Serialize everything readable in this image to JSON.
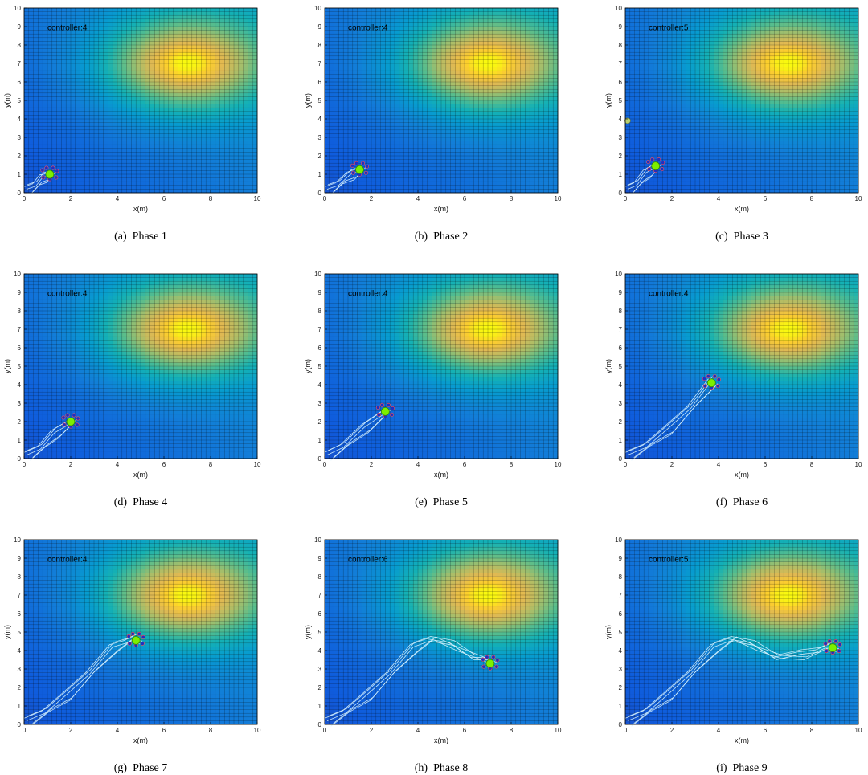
{
  "figure": {
    "panels": [
      {
        "caption": "(a)  Phase 1",
        "controller_label": "controller:4",
        "xlabel": "x(m)",
        "ylabel": "y(m)"
      },
      {
        "caption": "(b)  Phase 2",
        "controller_label": "controller:4",
        "xlabel": "x(m)",
        "ylabel": "y(m)"
      },
      {
        "caption": "(c)  Phase 3",
        "controller_label": "controller:5",
        "xlabel": "x(m)",
        "ylabel": "y(m)"
      },
      {
        "caption": "(d)  Phase 4",
        "controller_label": "controller:4",
        "xlabel": "x(m)",
        "ylabel": "y(m)"
      },
      {
        "caption": "(e)  Phase 5",
        "controller_label": "controller:4",
        "xlabel": "x(m)",
        "ylabel": "y(m)"
      },
      {
        "caption": "(f)  Phase 6",
        "controller_label": "controller:4",
        "xlabel": "x(m)",
        "ylabel": "y(m)"
      },
      {
        "caption": "(g)  Phase 7",
        "controller_label": "controller:4",
        "xlabel": "x(m)",
        "ylabel": "y(m)"
      },
      {
        "caption": "(h)  Phase 8",
        "controller_label": "controller:6",
        "xlabel": "x(m)",
        "ylabel": "y(m)"
      },
      {
        "caption": "(i)  Phase 9",
        "controller_label": "controller:5",
        "xlabel": "x(m)",
        "ylabel": "y(m)"
      }
    ]
  },
  "chart_data": [
    {
      "type": "heatmap",
      "phase": 1,
      "xlim": [
        0,
        10
      ],
      "ylim": [
        0,
        10
      ],
      "xticks": [
        0,
        2,
        4,
        6,
        8,
        10
      ],
      "yticks": [
        0,
        1,
        2,
        3,
        4,
        5,
        6,
        7,
        8,
        9,
        10
      ],
      "grid": true,
      "field_peak": [
        7,
        7
      ],
      "centroid": [
        1.1,
        1.0
      ],
      "path": [
        [
          0.1,
          0.1
        ],
        [
          0.5,
          0.45
        ],
        [
          0.8,
          0.75
        ],
        [
          1.1,
          1.0
        ]
      ]
    },
    {
      "type": "heatmap",
      "phase": 2,
      "xlim": [
        0,
        10
      ],
      "ylim": [
        0,
        10
      ],
      "xticks": [
        0,
        2,
        4,
        6,
        8,
        10
      ],
      "yticks": [
        0,
        1,
        2,
        3,
        4,
        5,
        6,
        7,
        8,
        9,
        10
      ],
      "grid": true,
      "field_peak": [
        7,
        7
      ],
      "centroid": [
        1.5,
        1.25
      ],
      "path": [
        [
          0.1,
          0.1
        ],
        [
          0.6,
          0.5
        ],
        [
          1.1,
          0.9
        ],
        [
          1.5,
          1.25
        ]
      ]
    },
    {
      "type": "heatmap",
      "phase": 3,
      "xlim": [
        0,
        10
      ],
      "ylim": [
        0,
        10
      ],
      "xticks": [
        0,
        2,
        4,
        6,
        8,
        10
      ],
      "yticks": [
        0,
        1,
        2,
        3,
        4,
        5,
        6,
        7,
        8,
        9,
        10
      ],
      "grid": true,
      "field_peak": [
        7,
        7
      ],
      "centroid": [
        1.3,
        1.45
      ],
      "path": [
        [
          0.1,
          0.1
        ],
        [
          0.5,
          0.5
        ],
        [
          0.9,
          1.0
        ],
        [
          1.3,
          1.45
        ]
      ],
      "extra_marker": [
        0.1,
        3.9
      ]
    },
    {
      "type": "heatmap",
      "phase": 4,
      "xlim": [
        0,
        10
      ],
      "ylim": [
        0,
        10
      ],
      "xticks": [
        0,
        2,
        4,
        6,
        8,
        10
      ],
      "yticks": [
        0,
        1,
        2,
        3,
        4,
        5,
        6,
        7,
        8,
        9,
        10
      ],
      "grid": true,
      "field_peak": [
        7,
        7
      ],
      "centroid": [
        2.0,
        2.0
      ],
      "path": [
        [
          0.1,
          0.1
        ],
        [
          0.7,
          0.6
        ],
        [
          1.3,
          1.3
        ],
        [
          2.0,
          2.0
        ]
      ]
    },
    {
      "type": "heatmap",
      "phase": 5,
      "xlim": [
        0,
        10
      ],
      "ylim": [
        0,
        10
      ],
      "xticks": [
        0,
        2,
        4,
        6,
        8,
        10
      ],
      "yticks": [
        0,
        1,
        2,
        3,
        4,
        5,
        6,
        7,
        8,
        9,
        10
      ],
      "grid": true,
      "field_peak": [
        7,
        7
      ],
      "centroid": [
        2.6,
        2.55
      ],
      "path": [
        [
          0.1,
          0.1
        ],
        [
          0.8,
          0.7
        ],
        [
          1.7,
          1.6
        ],
        [
          2.6,
          2.55
        ]
      ]
    },
    {
      "type": "heatmap",
      "phase": 6,
      "xlim": [
        0,
        10
      ],
      "ylim": [
        0,
        10
      ],
      "xticks": [
        0,
        2,
        4,
        6,
        8,
        10
      ],
      "yticks": [
        0,
        1,
        2,
        3,
        4,
        5,
        6,
        7,
        8,
        9,
        10
      ],
      "grid": true,
      "field_peak": [
        7,
        7
      ],
      "centroid": [
        3.7,
        4.1
      ],
      "path": [
        [
          0.1,
          0.1
        ],
        [
          0.9,
          0.7
        ],
        [
          1.8,
          1.5
        ],
        [
          2.8,
          2.8
        ],
        [
          3.7,
          4.1
        ]
      ]
    },
    {
      "type": "heatmap",
      "phase": 7,
      "xlim": [
        0,
        10
      ],
      "ylim": [
        0,
        10
      ],
      "xticks": [
        0,
        2,
        4,
        6,
        8,
        10
      ],
      "yticks": [
        0,
        1,
        2,
        3,
        4,
        5,
        6,
        7,
        8,
        9,
        10
      ],
      "grid": true,
      "field_peak": [
        7,
        7
      ],
      "centroid": [
        4.8,
        4.55
      ],
      "path": [
        [
          0.1,
          0.1
        ],
        [
          0.9,
          0.7
        ],
        [
          1.8,
          1.5
        ],
        [
          2.8,
          2.8
        ],
        [
          3.8,
          4.1
        ],
        [
          4.4,
          4.5
        ],
        [
          4.8,
          4.55
        ]
      ]
    },
    {
      "type": "heatmap",
      "phase": 8,
      "xlim": [
        0,
        10
      ],
      "ylim": [
        0,
        10
      ],
      "xticks": [
        0,
        2,
        4,
        6,
        8,
        10
      ],
      "yticks": [
        0,
        1,
        2,
        3,
        4,
        5,
        6,
        7,
        8,
        9,
        10
      ],
      "grid": true,
      "field_peak": [
        7,
        7
      ],
      "centroid": [
        7.1,
        3.3
      ],
      "path": [
        [
          0.1,
          0.1
        ],
        [
          0.9,
          0.7
        ],
        [
          1.8,
          1.5
        ],
        [
          2.8,
          2.8
        ],
        [
          3.8,
          4.1
        ],
        [
          4.5,
          4.6
        ],
        [
          5.5,
          4.2
        ],
        [
          6.4,
          3.6
        ],
        [
          7.1,
          3.4
        ]
      ]
    },
    {
      "type": "heatmap",
      "phase": 9,
      "xlim": [
        0,
        10
      ],
      "ylim": [
        0,
        10
      ],
      "xticks": [
        0,
        2,
        4,
        6,
        8,
        10
      ],
      "yticks": [
        0,
        1,
        2,
        3,
        4,
        5,
        6,
        7,
        8,
        9,
        10
      ],
      "grid": true,
      "field_peak": [
        7,
        7
      ],
      "centroid": [
        8.9,
        4.15
      ],
      "path": [
        [
          0.1,
          0.1
        ],
        [
          0.9,
          0.7
        ],
        [
          1.8,
          1.5
        ],
        [
          2.8,
          2.8
        ],
        [
          3.8,
          4.1
        ],
        [
          4.5,
          4.6
        ],
        [
          5.5,
          4.2
        ],
        [
          6.5,
          3.6
        ],
        [
          7.5,
          3.7
        ],
        [
          8.3,
          4.0
        ],
        [
          8.9,
          4.15
        ]
      ]
    }
  ]
}
